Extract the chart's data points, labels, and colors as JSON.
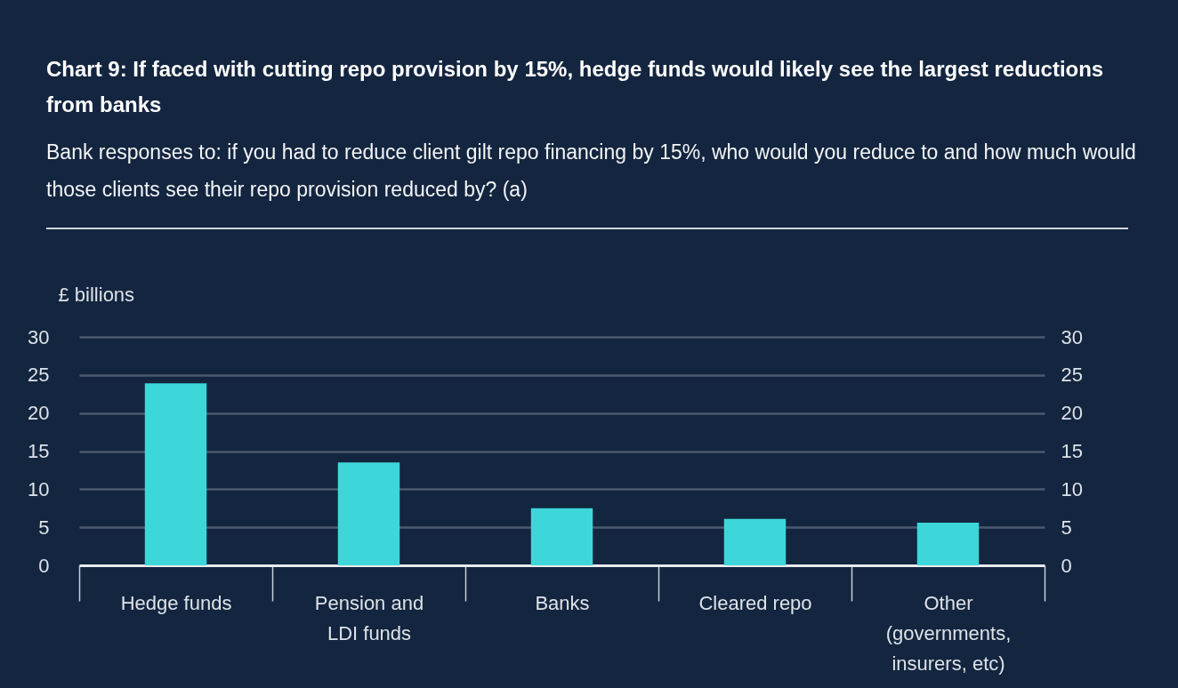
{
  "chart_data": {
    "type": "bar",
    "title": "Chart 9: If faced with cutting repo provision by 15%, hedge funds would likely see the largest reductions from banks",
    "subtitle": "Bank responses to: if you had to reduce client gilt repo financing by 15%, who would you reduce to and how much would those clients see their repo provision reduced by? (a)",
    "ylabel": "£ billions",
    "categories": [
      "Hedge funds",
      "Pension and LDI funds",
      "Banks",
      "Cleared repo",
      "Other (governments, insurers, etc)"
    ],
    "values": [
      23.9,
      13.5,
      7.5,
      6.1,
      5.6
    ],
    "color": "#3dd7da",
    "ylim": [
      0,
      30
    ],
    "yticks": [
      0,
      5,
      10,
      15,
      20,
      25,
      30
    ],
    "y2lim": [
      0,
      30
    ],
    "y2ticks": [
      0,
      5,
      10,
      15,
      20,
      25,
      30
    ],
    "grid": "y"
  }
}
